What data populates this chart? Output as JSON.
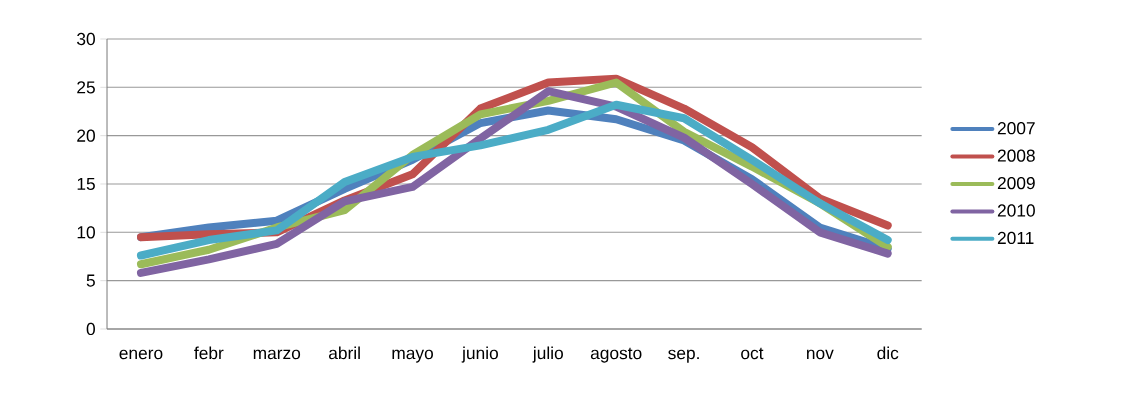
{
  "chart_data": {
    "type": "line",
    "categories": [
      "enero",
      "febr",
      "marzo",
      "abril",
      "mayo",
      "junio",
      "julio",
      "agosto",
      "sep.",
      "oct",
      "nov",
      "dic"
    ],
    "series": [
      {
        "name": "2007",
        "color": "#4f81bd",
        "values": [
          9.5,
          10.5,
          11.2,
          14.5,
          17.5,
          21.3,
          22.6,
          21.7,
          19.5,
          15.5,
          10.5,
          8.3
        ]
      },
      {
        "name": "2008",
        "color": "#c0504d",
        "values": [
          9.5,
          9.8,
          10.0,
          13.3,
          16.0,
          22.8,
          25.5,
          25.9,
          22.8,
          18.8,
          13.5,
          10.7
        ]
      },
      {
        "name": "2009",
        "color": "#9bbb59",
        "values": [
          6.7,
          8.2,
          10.5,
          12.3,
          18.0,
          22.2,
          23.6,
          25.5,
          20.4,
          16.8,
          13.0,
          8.5
        ]
      },
      {
        "name": "2010",
        "color": "#8064a2",
        "values": [
          5.8,
          7.2,
          8.8,
          13.2,
          14.7,
          19.7,
          24.6,
          23.0,
          19.8,
          15.0,
          10.0,
          7.8
        ]
      },
      {
        "name": "2011",
        "color": "#4bacc6",
        "values": [
          7.6,
          9.2,
          10.2,
          15.2,
          17.8,
          19.0,
          20.6,
          23.2,
          21.8,
          17.5,
          13.0,
          9.2
        ]
      }
    ],
    "ylim": [
      0,
      30
    ],
    "yticks": [
      0,
      5,
      10,
      15,
      20,
      25,
      30
    ],
    "grid": "y",
    "legend": "right",
    "marker": "none",
    "line_style": "solid"
  }
}
